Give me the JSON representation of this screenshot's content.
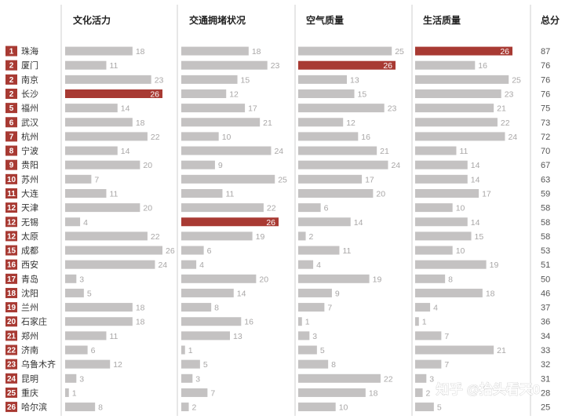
{
  "chart_data": {
    "type": "bar",
    "columns": [
      "文化活力",
      "交通拥堵状况",
      "空气质量",
      "生活质量"
    ],
    "total_label": "总分",
    "xlim": [
      0,
      26
    ],
    "rows": [
      {
        "rank": "1",
        "city": "珠海",
        "values": [
          18,
          18,
          25,
          26
        ],
        "total": "87"
      },
      {
        "rank": "2",
        "city": "厦门",
        "values": [
          11,
          23,
          26,
          16
        ],
        "total": "76"
      },
      {
        "rank": "2",
        "city": "南京",
        "values": [
          23,
          15,
          13,
          25
        ],
        "total": "76"
      },
      {
        "rank": "2",
        "city": "长沙",
        "values": [
          26,
          12,
          15,
          23
        ],
        "total": "76"
      },
      {
        "rank": "5",
        "city": "福州",
        "values": [
          14,
          17,
          23,
          21
        ],
        "total": "75"
      },
      {
        "rank": "6",
        "city": "武汉",
        "values": [
          18,
          21,
          12,
          22
        ],
        "total": "73"
      },
      {
        "rank": "7",
        "city": "杭州",
        "values": [
          22,
          10,
          16,
          24
        ],
        "total": "72"
      },
      {
        "rank": "8",
        "city": "宁波",
        "values": [
          14,
          24,
          21,
          11
        ],
        "total": "70"
      },
      {
        "rank": "9",
        "city": "贵阳",
        "values": [
          20,
          9,
          24,
          14
        ],
        "total": "67"
      },
      {
        "rank": "10",
        "city": "苏州",
        "values": [
          7,
          25,
          17,
          14
        ],
        "total": "63"
      },
      {
        "rank": "11",
        "city": "大连",
        "values": [
          11,
          11,
          20,
          17
        ],
        "total": "59"
      },
      {
        "rank": "12",
        "city": "天津",
        "values": [
          20,
          22,
          6,
          10
        ],
        "total": "58"
      },
      {
        "rank": "12",
        "city": "无锡",
        "values": [
          4,
          26,
          14,
          14
        ],
        "total": "58"
      },
      {
        "rank": "12",
        "city": "太原",
        "values": [
          22,
          19,
          2,
          15
        ],
        "total": "58"
      },
      {
        "rank": "15",
        "city": "成都",
        "values": [
          26,
          6,
          11,
          10
        ],
        "total": "53"
      },
      {
        "rank": "16",
        "city": "西安",
        "values": [
          24,
          4,
          4,
          19
        ],
        "total": "51"
      },
      {
        "rank": "17",
        "city": "青岛",
        "values": [
          3,
          20,
          19,
          8
        ],
        "total": "50"
      },
      {
        "rank": "18",
        "city": "沈阳",
        "values": [
          5,
          14,
          9,
          18
        ],
        "total": "46"
      },
      {
        "rank": "19",
        "city": "兰州",
        "values": [
          18,
          8,
          7,
          4
        ],
        "total": "37"
      },
      {
        "rank": "20",
        "city": "石家庄",
        "values": [
          18,
          16,
          1,
          1
        ],
        "total": "36"
      },
      {
        "rank": "21",
        "city": "郑州",
        "values": [
          11,
          13,
          3,
          7
        ],
        "total": "34"
      },
      {
        "rank": "22",
        "city": "济南",
        "values": [
          6,
          1,
          5,
          21
        ],
        "total": "33"
      },
      {
        "rank": "23",
        "city": "乌鲁木齐",
        "values": [
          12,
          5,
          8,
          7
        ],
        "total": "32"
      },
      {
        "rank": "24",
        "city": "昆明",
        "values": [
          3,
          3,
          22,
          3
        ],
        "total": "31"
      },
      {
        "rank": "25",
        "city": "重庆",
        "values": [
          1,
          7,
          18,
          2
        ],
        "total": "28"
      },
      {
        "rank": "26",
        "city": "哈尔滨",
        "values": [
          8,
          2,
          10,
          5
        ],
        "total": "25"
      }
    ],
    "highlights": [
      [
        0,
        3
      ],
      [
        1,
        2
      ],
      [
        3,
        0
      ],
      [
        12,
        1
      ]
    ]
  },
  "colors": {
    "bar": "#c4c2c2",
    "highlight": "#a83a33",
    "rank_badge": "#a83a33",
    "value_label": "#a9a7a7",
    "value_label_highlight": "#ffffff",
    "separator": "#cfcfcf"
  },
  "watermark": "知乎 @抬头看天0"
}
